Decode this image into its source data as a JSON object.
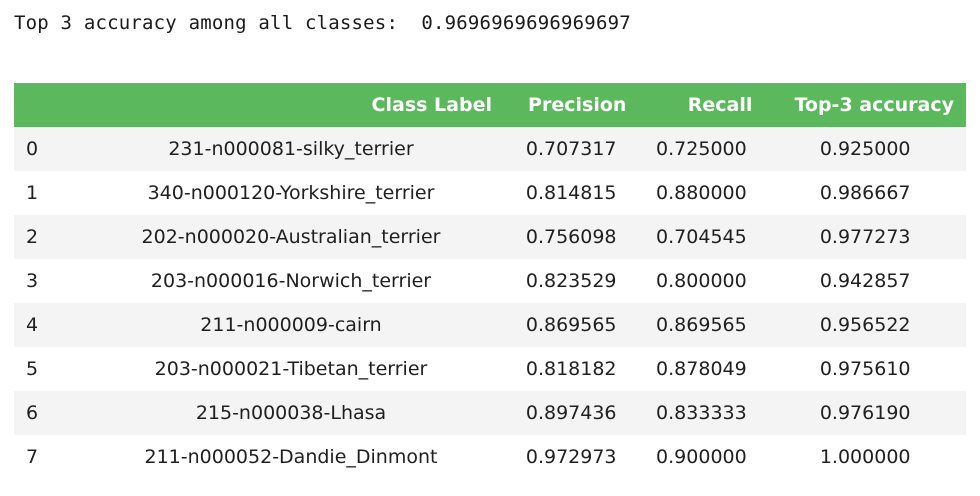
{
  "output": {
    "line": "Top 3 accuracy among all classes:  0.9696969696969697"
  },
  "table": {
    "headers": [
      "",
      "Class Label",
      "Precision",
      "Recall",
      "Top-3 accuracy"
    ],
    "rows": [
      {
        "index": "0",
        "label": "231-n000081-silky_terrier",
        "precision": "0.707317",
        "recall": "0.725000",
        "top3": "0.925000"
      },
      {
        "index": "1",
        "label": "340-n000120-Yorkshire_terrier",
        "precision": "0.814815",
        "recall": "0.880000",
        "top3": "0.986667"
      },
      {
        "index": "2",
        "label": "202-n000020-Australian_terrier",
        "precision": "0.756098",
        "recall": "0.704545",
        "top3": "0.977273"
      },
      {
        "index": "3",
        "label": "203-n000016-Norwich_terrier",
        "precision": "0.823529",
        "recall": "0.800000",
        "top3": "0.942857"
      },
      {
        "index": "4",
        "label": "211-n000009-cairn",
        "precision": "0.869565",
        "recall": "0.869565",
        "top3": "0.956522"
      },
      {
        "index": "5",
        "label": "203-n000021-Tibetan_terrier",
        "precision": "0.818182",
        "recall": "0.878049",
        "top3": "0.975610"
      },
      {
        "index": "6",
        "label": "215-n000038-Lhasa",
        "precision": "0.897436",
        "recall": "0.833333",
        "top3": "0.976190"
      },
      {
        "index": "7",
        "label": "211-n000052-Dandie_Dinmont",
        "precision": "0.972973",
        "recall": "0.900000",
        "top3": "1.000000"
      }
    ]
  },
  "colors": {
    "header_bg": "#5cb85c",
    "header_text": "#ffffff",
    "row_stripe": "#f4f4f4"
  }
}
